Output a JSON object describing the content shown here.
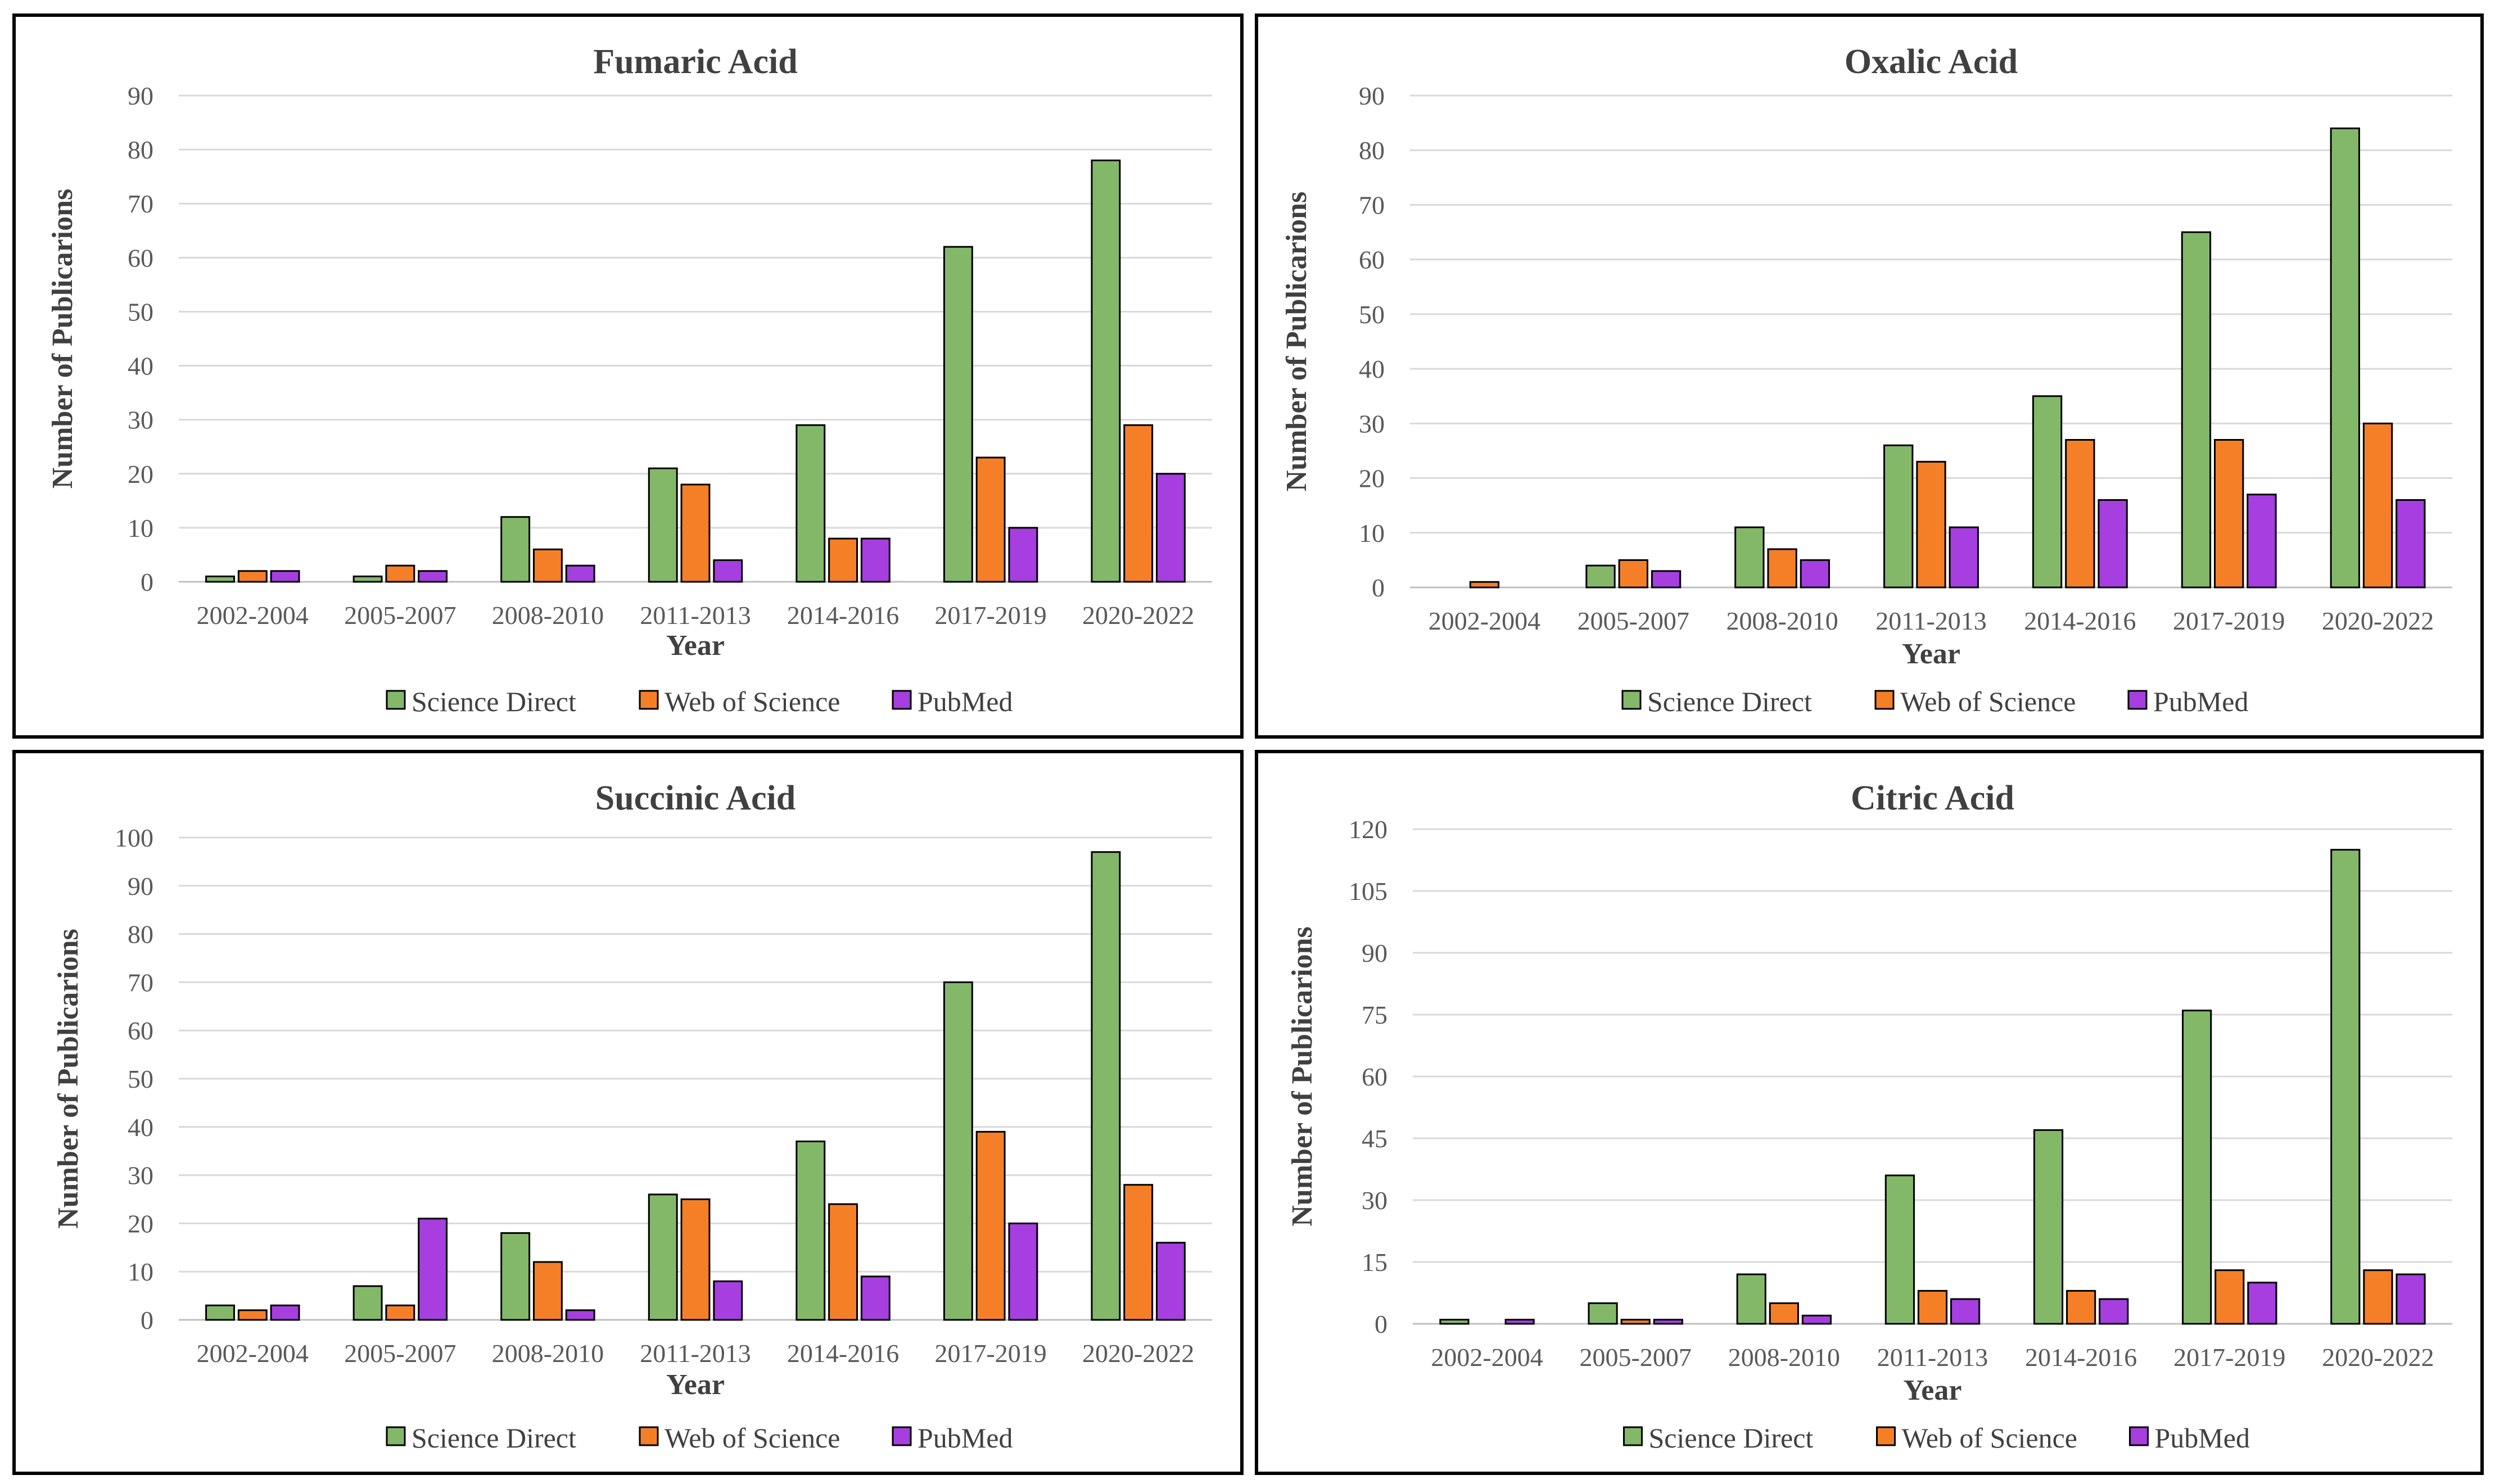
{
  "colors": {
    "science_direct": "#84b869",
    "web_of_science": "#f57f26",
    "pubmed": "#a63ee0"
  },
  "chart_data": [
    {
      "type": "bar",
      "title": "Fumaric Acid",
      "xlabel": "Year",
      "ylabel": "Number of Publicarions",
      "categories": [
        "2002-2004",
        "2005-2007",
        "2008-2010",
        "2011-2013",
        "2014-2016",
        "2017-2019",
        "2020-2022"
      ],
      "ylim": [
        0,
        90
      ],
      "yticks": [
        0,
        10,
        20,
        30,
        40,
        50,
        60,
        70,
        80,
        90
      ],
      "grid": true,
      "legend": "bottom",
      "series": [
        {
          "name": "Science Direct",
          "values": [
            1,
            1,
            12,
            21,
            29,
            62,
            78
          ]
        },
        {
          "name": "Web of Science",
          "values": [
            2,
            3,
            6,
            18,
            8,
            23,
            29
          ]
        },
        {
          "name": "PubMed",
          "values": [
            2,
            2,
            3,
            4,
            8,
            10,
            20
          ]
        }
      ]
    },
    {
      "type": "bar",
      "title": "Oxalic Acid",
      "xlabel": "Year",
      "ylabel": "Number of Publicarions",
      "categories": [
        "2002-2004",
        "2005-2007",
        "2008-2010",
        "2011-2013",
        "2014-2016",
        "2017-2019",
        "2020-2022"
      ],
      "ylim": [
        0,
        90
      ],
      "yticks": [
        0,
        10,
        20,
        30,
        40,
        50,
        60,
        70,
        80,
        90
      ],
      "grid": true,
      "legend": "bottom",
      "series": [
        {
          "name": "Science Direct",
          "values": [
            0,
            4,
            11,
            26,
            35,
            65,
            84
          ]
        },
        {
          "name": "Web of Science",
          "values": [
            1,
            5,
            7,
            23,
            27,
            27,
            30
          ]
        },
        {
          "name": "PubMed",
          "values": [
            0,
            3,
            5,
            11,
            16,
            17,
            16
          ]
        }
      ]
    },
    {
      "type": "bar",
      "title": "Succinic Acid",
      "xlabel": "Year",
      "ylabel": "Number of Publicarions",
      "categories": [
        "2002-2004",
        "2005-2007",
        "2008-2010",
        "2011-2013",
        "2014-2016",
        "2017-2019",
        "2020-2022"
      ],
      "ylim": [
        0,
        100
      ],
      "yticks": [
        0,
        10,
        20,
        30,
        40,
        50,
        60,
        70,
        80,
        90,
        100
      ],
      "grid": true,
      "legend": "bottom",
      "series": [
        {
          "name": "Science Direct",
          "values": [
            3,
            7,
            18,
            26,
            37,
            70,
            97
          ]
        },
        {
          "name": "Web of Science",
          "values": [
            2,
            3,
            12,
            25,
            24,
            39,
            28
          ]
        },
        {
          "name": "PubMed",
          "values": [
            3,
            21,
            2,
            8,
            9,
            20,
            16
          ]
        }
      ]
    },
    {
      "type": "bar",
      "title": "Citric Acid",
      "xlabel": "Year",
      "ylabel": "Number of Publicarions",
      "categories": [
        "2002-2004",
        "2005-2007",
        "2008-2010",
        "2011-2013",
        "2014-2016",
        "2017-2019",
        "2020-2022"
      ],
      "ylim": [
        0,
        120
      ],
      "yticks": [
        0,
        15,
        30,
        45,
        60,
        75,
        90,
        105,
        120
      ],
      "grid": true,
      "legend": "bottom",
      "series": [
        {
          "name": "Science Direct",
          "values": [
            1,
            5,
            12,
            36,
            47,
            76,
            115
          ]
        },
        {
          "name": "Web of Science",
          "values": [
            0,
            1,
            5,
            8,
            8,
            13,
            13
          ]
        },
        {
          "name": "PubMed",
          "values": [
            1,
            1,
            2,
            6,
            6,
            10,
            12
          ]
        }
      ]
    }
  ]
}
